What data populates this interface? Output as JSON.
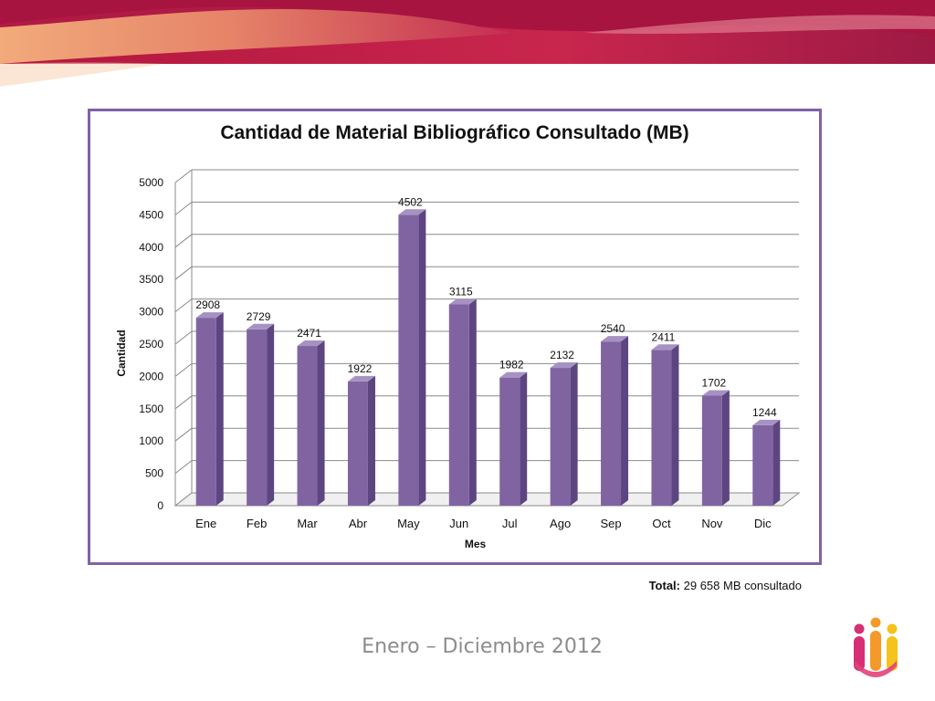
{
  "colors": {
    "bar_fill": "#8064a2",
    "frame_border": "#7f62a6",
    "banner_crimson": "#c0234a",
    "banner_orange": "#ef9b66",
    "footer_text": "#8c8c8c",
    "logo_pink": "#d62f74",
    "logo_orange": "#f39a2b",
    "logo_yellow": "#f6c21c"
  },
  "chart_data": {
    "type": "bar",
    "title": "Cantidad de Material Bibliográfico Consultado (MB)",
    "xlabel": "Mes",
    "ylabel": "Cantidad",
    "categories": [
      "Ene",
      "Feb",
      "Mar",
      "Abr",
      "May",
      "Jun",
      "Jul",
      "Ago",
      "Sep",
      "Oct",
      "Nov",
      "Dic"
    ],
    "values": [
      2908,
      2729,
      2471,
      1922,
      4502,
      3115,
      1982,
      2132,
      2540,
      2411,
      1702,
      1244
    ],
    "ylim": [
      0,
      5000
    ],
    "yticks": [
      "0",
      "500",
      "1000",
      "1500",
      "2000",
      "2500",
      "3000",
      "3500",
      "4000",
      "4500",
      "5000"
    ],
    "grid": true,
    "legend": "none",
    "style": "3d-column"
  },
  "total": {
    "label": "Total:",
    "value": "29 658 MB consultado"
  },
  "footer": {
    "period": "Enero – Diciembre 2012"
  },
  "logo": {
    "icon": "three-people-logo-icon"
  }
}
